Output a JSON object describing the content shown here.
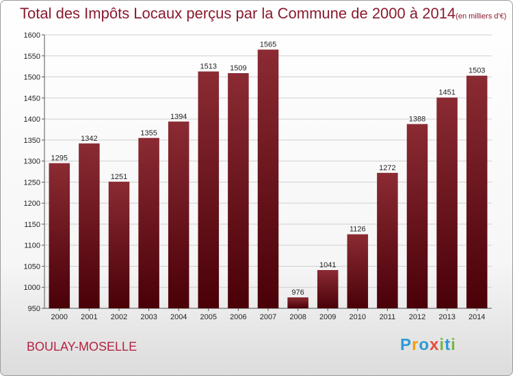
{
  "header": {
    "title": "Total des Impôts Locaux perçus par la Commune de 2000 à 2014",
    "unit": "(en milliers d'€)"
  },
  "footer": {
    "commune": "BOULAY-MOSELLE",
    "logo": [
      "P",
      "r",
      "o",
      "x",
      "i",
      "t",
      "i"
    ],
    "logo_colors": [
      "#2a9ad6",
      "#f39c12",
      "#2a9ad6",
      "#e74c3c",
      "#7cb342",
      "#2a9ad6",
      "#7cb342"
    ]
  },
  "colors": {
    "bar_top": "#8b2b33",
    "bar_bottom": "#4a0008",
    "title": "#8a1a2e",
    "grid": "#cfcfcf"
  },
  "chart_data": {
    "type": "bar",
    "title": "Total des Impôts Locaux perçus par la Commune de 2000 à 2014",
    "categories": [
      "2000",
      "2001",
      "2002",
      "2003",
      "2004",
      "2005",
      "2006",
      "2007",
      "2008",
      "2009",
      "2010",
      "2011",
      "2012",
      "2013",
      "2014"
    ],
    "values": [
      1295,
      1342,
      1251,
      1355,
      1394,
      1513,
      1509,
      1565,
      976,
      1041,
      1126,
      1272,
      1388,
      1451,
      1503
    ],
    "ylim": [
      950,
      1600
    ],
    "yticks": [
      950,
      1000,
      1050,
      1100,
      1150,
      1200,
      1250,
      1300,
      1350,
      1400,
      1450,
      1500,
      1550,
      1600
    ],
    "grid": true,
    "xlabel": "",
    "ylabel": ""
  }
}
